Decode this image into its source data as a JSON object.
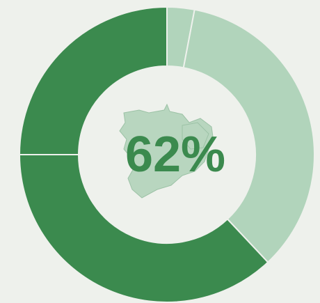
{
  "chart_data": {
    "type": "donut",
    "center_label": "62%",
    "values": [
      3,
      35,
      37,
      25
    ],
    "colors": [
      "#b1d4bb",
      "#b1d4bb",
      "#3b8a4e",
      "#3b8a4e"
    ]
  }
}
